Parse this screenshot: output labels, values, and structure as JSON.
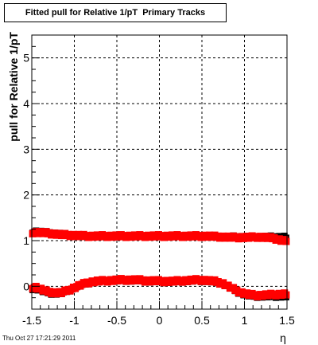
{
  "timestamp": "Thu Oct 27 17:21:29 2011",
  "chart_data": {
    "type": "scatter",
    "title": "Fitted pull for Relative 1/pT  Primary Tracks",
    "xlabel": "η",
    "ylabel": "pull for Relative 1/pT",
    "xlim": [
      -1.5,
      1.5
    ],
    "ylim": [
      -0.5,
      5.5
    ],
    "xticks": [
      -1.5,
      -1,
      -0.5,
      0,
      0.5,
      1,
      1.5
    ],
    "xtick_labels": [
      "-1.5",
      "-1",
      "-0.5",
      "0",
      "0.5",
      "1",
      "1.5"
    ],
    "yticks": [
      0,
      1,
      2,
      3,
      4,
      5
    ],
    "ytick_labels": [
      "0",
      "1",
      "2",
      "3",
      "4",
      "5"
    ],
    "grid": true,
    "series": [
      {
        "color": "#000000",
        "marker": "square",
        "x": [
          -1.45,
          -1.35,
          -1.25,
          -1.15,
          -1.05,
          -0.95,
          -0.85,
          -0.75,
          -0.65,
          -0.55,
          -0.45,
          -0.35,
          -0.25,
          -0.15,
          -0.05,
          0.05,
          0.15,
          0.25,
          0.35,
          0.45,
          0.55,
          0.65,
          0.75,
          0.85,
          0.95,
          1.05,
          1.15,
          1.25,
          1.35,
          1.45
        ],
        "y": [
          1.2,
          1.18,
          1.16,
          1.14,
          1.12,
          1.11,
          1.1,
          1.1,
          1.1,
          1.1,
          1.1,
          1.1,
          1.1,
          1.1,
          1.1,
          1.1,
          1.1,
          1.1,
          1.1,
          1.1,
          1.1,
          1.09,
          1.08,
          1.08,
          1.08,
          1.08,
          1.08,
          1.08,
          1.08,
          1.08
        ]
      },
      {
        "color": "#ff0000",
        "marker": "square",
        "x": [
          -1.45,
          -1.35,
          -1.25,
          -1.15,
          -1.05,
          -0.95,
          -0.85,
          -0.75,
          -0.65,
          -0.55,
          -0.45,
          -0.35,
          -0.25,
          -0.15,
          -0.05,
          0.05,
          0.15,
          0.25,
          0.35,
          0.45,
          0.55,
          0.65,
          0.75,
          0.85,
          0.95,
          1.05,
          1.15,
          1.25,
          1.35,
          1.45
        ],
        "y": [
          1.18,
          1.17,
          1.15,
          1.13,
          1.12,
          1.11,
          1.1,
          1.1,
          1.1,
          1.1,
          1.1,
          1.1,
          1.1,
          1.1,
          1.1,
          1.1,
          1.1,
          1.1,
          1.1,
          1.1,
          1.1,
          1.09,
          1.08,
          1.07,
          1.07,
          1.07,
          1.08,
          1.07,
          1.05,
          1.0
        ]
      },
      {
        "color": "#000000",
        "marker": "square",
        "x": [
          -1.45,
          -1.35,
          -1.25,
          -1.15,
          -1.05,
          -0.95,
          -0.85,
          -0.75,
          -0.65,
          -0.55,
          -0.45,
          -0.35,
          -0.25,
          -0.15,
          -0.05,
          0.05,
          0.15,
          0.25,
          0.35,
          0.45,
          0.55,
          0.65,
          0.75,
          0.85,
          0.95,
          1.05,
          1.15,
          1.25,
          1.35,
          1.45
        ],
        "y": [
          -0.05,
          -0.12,
          -0.16,
          -0.15,
          -0.08,
          0.0,
          0.07,
          0.1,
          0.12,
          0.13,
          0.13,
          0.13,
          0.13,
          0.11,
          0.11,
          0.1,
          0.1,
          0.11,
          0.12,
          0.13,
          0.12,
          0.1,
          0.05,
          -0.05,
          -0.15,
          -0.2,
          -0.22,
          -0.22,
          -0.22,
          -0.22
        ]
      },
      {
        "color": "#ff0000",
        "marker": "square",
        "x": [
          -1.45,
          -1.35,
          -1.25,
          -1.15,
          -1.05,
          -0.95,
          -0.85,
          -0.75,
          -0.65,
          -0.55,
          -0.45,
          -0.35,
          -0.25,
          -0.15,
          -0.05,
          0.05,
          0.15,
          0.25,
          0.35,
          0.45,
          0.55,
          0.65,
          0.75,
          0.85,
          0.95,
          1.05,
          1.15,
          1.25,
          1.35,
          1.45
        ],
        "y": [
          -0.02,
          -0.1,
          -0.14,
          -0.14,
          -0.07,
          0.01,
          0.08,
          0.11,
          0.12,
          0.13,
          0.14,
          0.14,
          0.14,
          0.12,
          0.12,
          0.11,
          0.11,
          0.12,
          0.13,
          0.14,
          0.13,
          0.11,
          0.06,
          -0.04,
          -0.13,
          -0.18,
          -0.2,
          -0.19,
          -0.18,
          -0.17
        ]
      }
    ]
  }
}
